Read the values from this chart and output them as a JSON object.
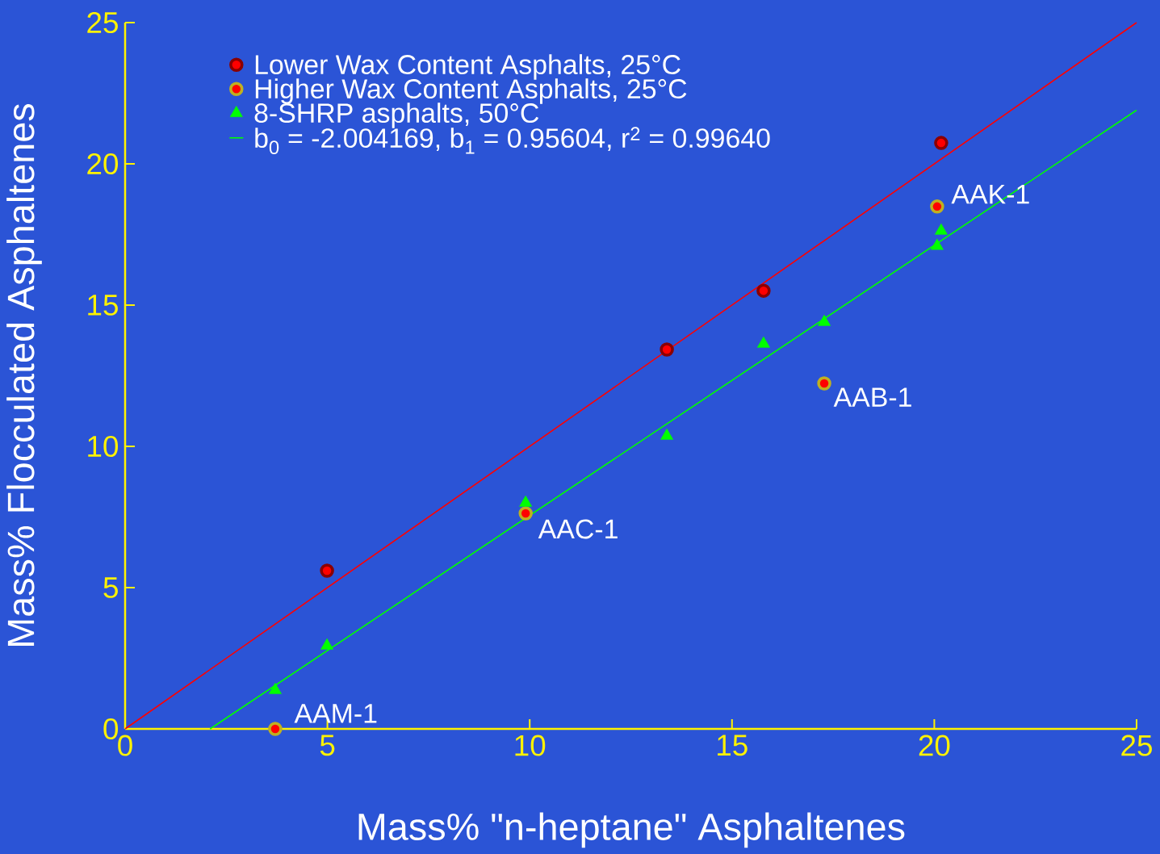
{
  "chart_data": {
    "type": "scatter",
    "xlabel": "Mass% \"n-heptane\" Asphaltenes",
    "ylabel": "Mass% Flocculated Asphaltenes",
    "xlim": [
      0,
      25
    ],
    "ylim": [
      0,
      25
    ],
    "xticks": [
      0,
      5,
      10,
      15,
      20,
      25
    ],
    "yticks": [
      0,
      5,
      10,
      15,
      20,
      25
    ],
    "legend": "top left",
    "series": [
      {
        "name": "Lower Wax Content Asphalts, 25°C",
        "type": "scatter",
        "marker": "circle",
        "color": "#8b0000",
        "x": [
          4.99,
          13.39,
          15.78,
          20.17
        ],
        "values": [
          5.6,
          13.43,
          15.51,
          20.74
        ]
      },
      {
        "name": "Higher Wax Content Asphalts, 25°C",
        "type": "scatter",
        "marker": "circle",
        "color": "#c0b020",
        "x": [
          3.71,
          9.9,
          17.28,
          20.07
        ],
        "values": [
          0.0,
          7.63,
          12.23,
          18.49
        ]
      },
      {
        "name": "8-SHRP asphalts, 50°C",
        "type": "scatter",
        "marker": "triangle",
        "color": "#00ff00",
        "x": [
          3.71,
          4.99,
          9.9,
          13.39,
          15.78,
          17.28,
          20.07,
          20.17
        ],
        "values": [
          1.37,
          2.94,
          8.0,
          10.37,
          13.63,
          14.4,
          17.09,
          17.63
        ]
      },
      {
        "name": "b$_{0}$ = -2.004169, b$_{1}$ = 0.95604, r$^{2}$ = 0.99640",
        "type": "line",
        "marker": "none",
        "color": "#00ff00",
        "x": [
          2.1,
          25
        ],
        "values": [
          0,
          21.9
        ]
      },
      {
        "type": "line",
        "marker": "none",
        "color": "#ff0000",
        "x": [
          0,
          25
        ],
        "values": [
          0,
          25
        ]
      }
    ],
    "annotations": [
      {
        "text": "AAK-1",
        "x": 20.07,
        "y": 18.49
      },
      {
        "text": "AAB-1",
        "x": 17.28,
        "y": 12.23
      },
      {
        "text": "AAC-1",
        "x": 9.9,
        "y": 7.63
      },
      {
        "text": "AAM-1",
        "x": 3.71,
        "y": 0
      }
    ]
  }
}
